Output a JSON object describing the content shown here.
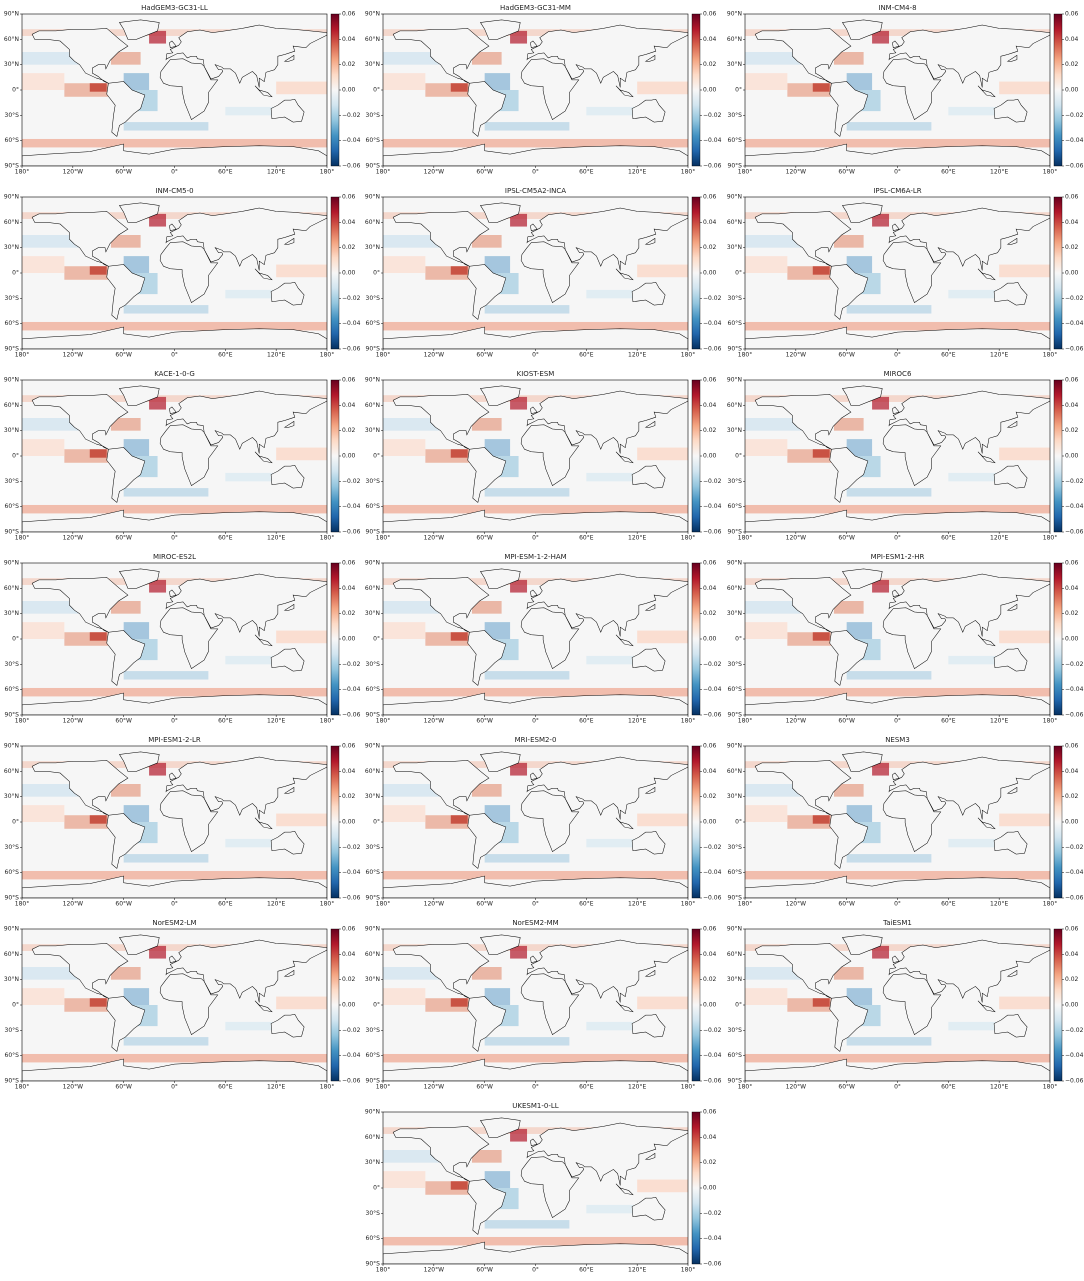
{
  "panels": [
    {
      "title": "HadGEM3-GC31-LL"
    },
    {
      "title": "HadGEM3-GC31-MM"
    },
    {
      "title": "INM-CM4-8"
    },
    {
      "title": "INM-CM5-0"
    },
    {
      "title": "IPSL-CM5A2-INCA"
    },
    {
      "title": "IPSL-CM6A-LR"
    },
    {
      "title": "KACE-1-0-G"
    },
    {
      "title": "KIOST-ESM"
    },
    {
      "title": "MIROC6"
    },
    {
      "title": "MIROC-ES2L"
    },
    {
      "title": "MPI-ESM-1-2-HAM"
    },
    {
      "title": "MPI-ESM1-2-HR"
    },
    {
      "title": "MPI-ESM1-2-LR"
    },
    {
      "title": "MRI-ESM2-0"
    },
    {
      "title": "NESM3"
    },
    {
      "title": "NorESM2-LM"
    },
    {
      "title": "NorESM2-MM"
    },
    {
      "title": "TaiESM1"
    },
    {
      "title": "UKESM1-0-LL"
    }
  ],
  "map": {
    "xlim": [
      -180,
      180
    ],
    "ylim": [
      -90,
      90
    ],
    "xticks": [
      {
        "value": -180,
        "label": "180°"
      },
      {
        "value": -120,
        "label": "120°W"
      },
      {
        "value": -60,
        "label": "60°W"
      },
      {
        "value": 0,
        "label": "0°"
      },
      {
        "value": 60,
        "label": "60°E"
      },
      {
        "value": 120,
        "label": "120°E"
      },
      {
        "value": 180,
        "label": "180°"
      }
    ],
    "yticks": [
      {
        "value": -90,
        "label": "90°S"
      },
      {
        "value": -60,
        "label": "60°S"
      },
      {
        "value": -30,
        "label": "30°S"
      },
      {
        "value": 0,
        "label": "0°"
      },
      {
        "value": 30,
        "label": "30°N"
      },
      {
        "value": 60,
        "label": "60°N"
      },
      {
        "value": 90,
        "label": "90°N"
      }
    ]
  },
  "colorbar": {
    "colormap": "RdBu_r",
    "lim": [
      -0.06,
      0.06
    ],
    "ticks": [
      {
        "value": -0.06,
        "label": "−0.06"
      },
      {
        "value": -0.04,
        "label": "−0.04"
      },
      {
        "value": -0.02,
        "label": "−0.02"
      },
      {
        "value": 0,
        "label": "0.00"
      },
      {
        "value": 0.02,
        "label": "0.02"
      },
      {
        "value": 0.04,
        "label": "0.04"
      },
      {
        "value": 0.06,
        "label": "0.06"
      }
    ]
  }
}
